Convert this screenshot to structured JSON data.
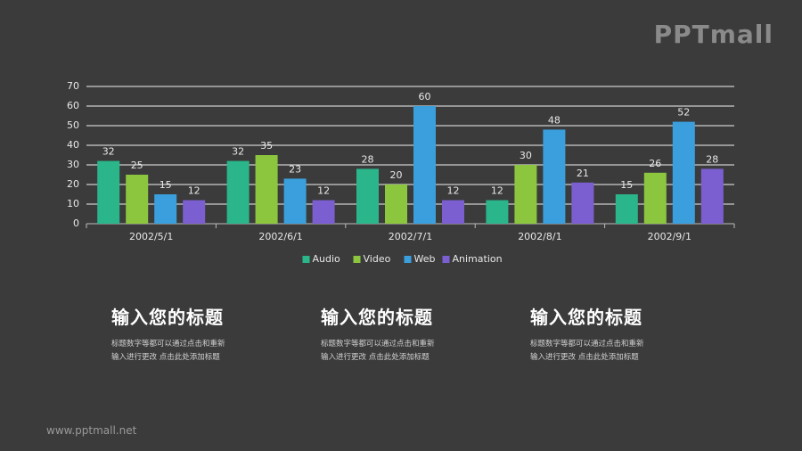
{
  "logo": "PPTmall",
  "footer": "www.pptmall.net",
  "chart_data": {
    "type": "bar",
    "categories": [
      "2002/5/1",
      "2002/6/1",
      "2002/7/1",
      "2002/8/1",
      "2002/9/1"
    ],
    "series": [
      {
        "name": "Audio",
        "color": "#2bb58a",
        "values": [
          32,
          32,
          28,
          12,
          15
        ]
      },
      {
        "name": "Video",
        "color": "#8cc63f",
        "values": [
          25,
          35,
          20,
          30,
          26
        ]
      },
      {
        "name": "Web",
        "color": "#3a9fdc",
        "values": [
          15,
          23,
          60,
          48,
          52
        ]
      },
      {
        "name": "Animation",
        "color": "#7b5fd0",
        "values": [
          12,
          12,
          12,
          21,
          28
        ]
      }
    ],
    "ylim": [
      0,
      70
    ],
    "yticks": [
      0,
      10,
      20,
      30,
      40,
      50,
      60,
      70
    ],
    "grid": true,
    "legend": "bottom"
  },
  "text_blocks": [
    {
      "title": "输入您的标题",
      "lines": [
        "标题数字等都可以通过点击和重新",
        "输入进行更改 点击此处添加标题"
      ]
    },
    {
      "title": "输入您的标题",
      "lines": [
        "标题数字等都可以通过点击和重新",
        "输入进行更改 点击此处添加标题"
      ]
    },
    {
      "title": "输入您的标题",
      "lines": [
        "标题数字等都可以通过点击和重新",
        "输入进行更改 点击此处添加标题"
      ]
    }
  ]
}
